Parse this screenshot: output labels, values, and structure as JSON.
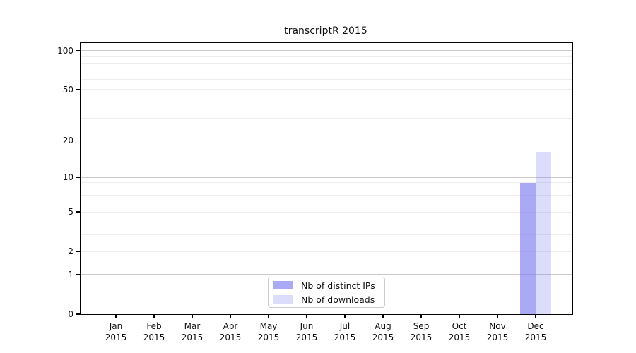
{
  "title": "transcriptR 2015",
  "chart_data": {
    "type": "bar",
    "title": "transcriptR 2015",
    "categories": [
      {
        "month": "Jan",
        "year": "2015"
      },
      {
        "month": "Feb",
        "year": "2015"
      },
      {
        "month": "Mar",
        "year": "2015"
      },
      {
        "month": "Apr",
        "year": "2015"
      },
      {
        "month": "May",
        "year": "2015"
      },
      {
        "month": "Jun",
        "year": "2015"
      },
      {
        "month": "Jul",
        "year": "2015"
      },
      {
        "month": "Aug",
        "year": "2015"
      },
      {
        "month": "Sep",
        "year": "2015"
      },
      {
        "month": "Oct",
        "year": "2015"
      },
      {
        "month": "Nov",
        "year": "2015"
      },
      {
        "month": "Dec",
        "year": "2015"
      }
    ],
    "series": [
      {
        "name": "Nb of distinct IPs",
        "color": "rgba(128,128,240,0.68)",
        "values": [
          0,
          0,
          0,
          0,
          0,
          0,
          0,
          0,
          0,
          0,
          0,
          9
        ]
      },
      {
        "name": "Nb of downloads",
        "color": "rgba(128,128,240,0.28)",
        "values": [
          0,
          0,
          0,
          0,
          0,
          0,
          0,
          0,
          0,
          0,
          0,
          16
        ]
      }
    ],
    "yscale": "log1p",
    "ylim": [
      0,
      115
    ],
    "yticks": [
      0,
      1,
      2,
      5,
      10,
      20,
      50,
      100
    ],
    "major_gridlines": [
      1,
      10,
      100
    ],
    "minor_gridlines": [
      2,
      3,
      4,
      5,
      6,
      7,
      8,
      9,
      20,
      30,
      40,
      50,
      60,
      70,
      80,
      90
    ],
    "grid": true,
    "legend_position": "lower center"
  },
  "colors": {
    "major_grid": "#c9c9c9",
    "minor_grid": "#ededed",
    "axis": "#000000",
    "text": "#111111",
    "legend_border": "#cccccc"
  }
}
